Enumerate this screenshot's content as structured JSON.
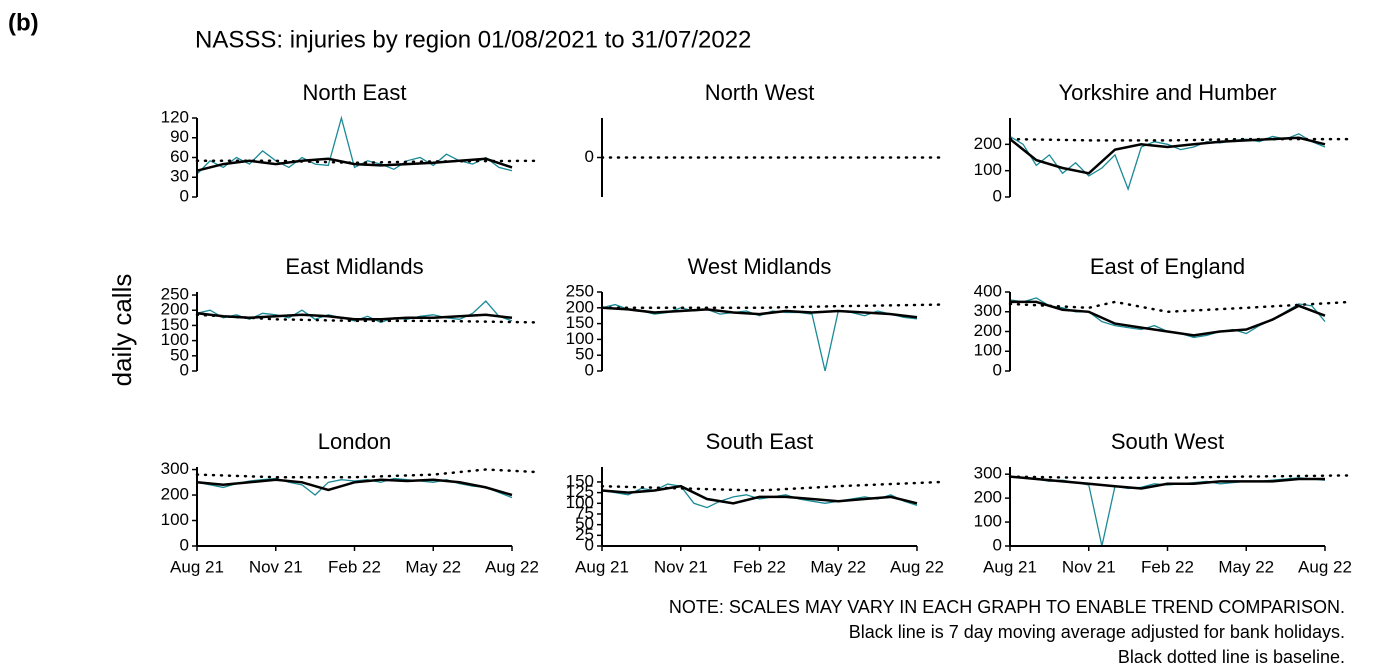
{
  "panel_label": "(b)",
  "title": "NASSS: injuries by region 01/08/2021 to 31/07/2022",
  "ylabel": "daily calls",
  "notes": [
    "NOTE: SCALES MAY VARY IN EACH GRAPH TO ENABLE TREND COMPARISON.",
    "Black line is 7 day moving average adjusted for bank holidays.",
    "Black dotted line is baseline."
  ],
  "chart_data": [
    {
      "type": "line",
      "title": "North East",
      "xlim": [
        0,
        12
      ],
      "ylim": [
        0,
        120
      ],
      "yticks": [
        0,
        30,
        60,
        90,
        120
      ],
      "series": [
        {
          "color": "#1a8a96",
          "style": "solid",
          "x": [
            0,
            0.5,
            1,
            1.5,
            2,
            2.5,
            3,
            3.5,
            4,
            4.5,
            5,
            5.5,
            6,
            6.5,
            7,
            7.5,
            8,
            8.5,
            9,
            9.5,
            10,
            10.5,
            11,
            11.5,
            12
          ],
          "values": [
            35,
            55,
            45,
            60,
            50,
            70,
            55,
            45,
            60,
            50,
            48,
            120,
            45,
            55,
            50,
            42,
            55,
            60,
            48,
            65,
            55,
            50,
            60,
            45,
            40
          ]
        },
        {
          "color": "#000000",
          "style": "solid",
          "x": [
            0,
            1,
            2,
            3,
            4,
            5,
            6,
            7,
            8,
            9,
            10,
            11,
            12
          ],
          "values": [
            40,
            50,
            55,
            50,
            55,
            58,
            50,
            48,
            50,
            52,
            55,
            58,
            45
          ]
        },
        {
          "color": "#000000",
          "style": "dotted",
          "x": [
            0,
            3,
            6,
            9,
            13
          ],
          "values": [
            55,
            55,
            52,
            54,
            55
          ]
        }
      ]
    },
    {
      "type": "line",
      "title": "North West",
      "xlim": [
        0,
        12
      ],
      "ylim": [
        -1,
        1
      ],
      "yticks": [
        0
      ],
      "series": [
        {
          "color": "#000000",
          "style": "dotted",
          "x": [
            0,
            13
          ],
          "values": [
            0,
            0
          ]
        }
      ]
    },
    {
      "type": "line",
      "title": "Yorkshire and Humber",
      "xlim": [
        0,
        12
      ],
      "ylim": [
        0,
        300
      ],
      "yticks": [
        0,
        100,
        200
      ],
      "series": [
        {
          "color": "#1a8a96",
          "style": "solid",
          "x": [
            0,
            0.5,
            1,
            1.5,
            2,
            2.5,
            3,
            3.5,
            4,
            4.5,
            5,
            5.5,
            6,
            6.5,
            7,
            7.5,
            8,
            8.5,
            9,
            9.5,
            10,
            10.5,
            11,
            11.5,
            12
          ],
          "values": [
            230,
            200,
            120,
            160,
            90,
            130,
            80,
            110,
            160,
            30,
            190,
            210,
            200,
            180,
            190,
            210,
            205,
            215,
            220,
            210,
            230,
            220,
            240,
            210,
            190
          ]
        },
        {
          "color": "#000000",
          "style": "solid",
          "x": [
            0,
            1,
            2,
            3,
            4,
            5,
            6,
            7,
            8,
            9,
            10,
            11,
            12
          ],
          "values": [
            220,
            140,
            110,
            90,
            180,
            200,
            190,
            200,
            210,
            215,
            220,
            225,
            200
          ]
        },
        {
          "color": "#000000",
          "style": "dotted",
          "x": [
            0,
            3,
            6,
            9,
            13
          ],
          "values": [
            220,
            215,
            215,
            220,
            220
          ]
        }
      ]
    },
    {
      "type": "line",
      "title": "East Midlands",
      "xlim": [
        0,
        12
      ],
      "ylim": [
        0,
        260
      ],
      "yticks": [
        0,
        50,
        100,
        150,
        200,
        250
      ],
      "series": [
        {
          "color": "#1a8a96",
          "style": "solid",
          "x": [
            0,
            0.5,
            1,
            1.5,
            2,
            2.5,
            3,
            3.5,
            4,
            4.5,
            5,
            5.5,
            6,
            6.5,
            7,
            7.5,
            8,
            8.5,
            9,
            9.5,
            10,
            10.5,
            11,
            11.5,
            12
          ],
          "values": [
            190,
            200,
            175,
            185,
            170,
            190,
            185,
            175,
            200,
            170,
            185,
            175,
            165,
            180,
            160,
            175,
            170,
            180,
            185,
            175,
            170,
            190,
            230,
            180,
            165
          ]
        },
        {
          "color": "#000000",
          "style": "solid",
          "x": [
            0,
            1,
            2,
            3,
            4,
            5,
            6,
            7,
            8,
            9,
            10,
            11,
            12
          ],
          "values": [
            190,
            180,
            175,
            180,
            185,
            180,
            170,
            170,
            175,
            175,
            180,
            185,
            175
          ]
        },
        {
          "color": "#000000",
          "style": "dotted",
          "x": [
            0,
            3,
            6,
            9,
            13
          ],
          "values": [
            185,
            170,
            165,
            165,
            160
          ]
        }
      ]
    },
    {
      "type": "line",
      "title": "West Midlands",
      "xlim": [
        0,
        12
      ],
      "ylim": [
        0,
        250
      ],
      "yticks": [
        0,
        50,
        100,
        150,
        200,
        250
      ],
      "series": [
        {
          "color": "#1a8a96",
          "style": "solid",
          "x": [
            0,
            0.5,
            1,
            1.5,
            2,
            2.5,
            3,
            3.5,
            4,
            4.5,
            5,
            5.5,
            6,
            6.5,
            7,
            7.5,
            8,
            8.5,
            9,
            9.5,
            10,
            10.5,
            11,
            11.5,
            12
          ],
          "values": [
            200,
            210,
            195,
            190,
            180,
            185,
            200,
            190,
            195,
            180,
            185,
            190,
            175,
            190,
            185,
            185,
            180,
            0,
            190,
            185,
            175,
            190,
            180,
            170,
            165
          ]
        },
        {
          "color": "#000000",
          "style": "solid",
          "x": [
            0,
            1,
            2,
            3,
            4,
            5,
            6,
            7,
            8,
            9,
            10,
            11,
            12
          ],
          "values": [
            200,
            195,
            185,
            190,
            195,
            185,
            180,
            190,
            185,
            190,
            185,
            180,
            170
          ]
        },
        {
          "color": "#000000",
          "style": "dotted",
          "x": [
            0,
            3,
            6,
            9,
            13
          ],
          "values": [
            200,
            200,
            200,
            205,
            210
          ]
        }
      ]
    },
    {
      "type": "line",
      "title": "East of England",
      "xlim": [
        0,
        12
      ],
      "ylim": [
        0,
        400
      ],
      "yticks": [
        0,
        100,
        200,
        300,
        400
      ],
      "series": [
        {
          "color": "#1a8a96",
          "style": "solid",
          "x": [
            0,
            0.5,
            1,
            1.5,
            2,
            2.5,
            3,
            3.5,
            4,
            4.5,
            5,
            5.5,
            6,
            6.5,
            7,
            7.5,
            8,
            8.5,
            9,
            9.5,
            10,
            10.5,
            11,
            11.5,
            12
          ],
          "values": [
            360,
            350,
            370,
            330,
            320,
            300,
            300,
            250,
            230,
            220,
            210,
            230,
            200,
            190,
            170,
            180,
            200,
            210,
            190,
            230,
            260,
            300,
            340,
            330,
            250
          ]
        },
        {
          "color": "#000000",
          "style": "solid",
          "x": [
            0,
            1,
            2,
            3,
            4,
            5,
            6,
            7,
            8,
            9,
            10,
            11,
            12
          ],
          "values": [
            350,
            350,
            310,
            300,
            240,
            220,
            200,
            180,
            200,
            210,
            260,
            330,
            280
          ]
        },
        {
          "color": "#000000",
          "style": "dotted",
          "x": [
            0,
            3,
            4,
            6,
            9,
            13
          ],
          "values": [
            340,
            320,
            350,
            300,
            320,
            350
          ]
        }
      ]
    },
    {
      "type": "line",
      "title": "London",
      "xlim": [
        0,
        12
      ],
      "ylim": [
        0,
        310
      ],
      "yticks": [
        0,
        100,
        200,
        300
      ],
      "xticks": [
        {
          "value": 0,
          "label": "Aug 21"
        },
        {
          "value": 3,
          "label": "Nov 21"
        },
        {
          "value": 6,
          "label": "Feb 22"
        },
        {
          "value": 9,
          "label": "May 22"
        },
        {
          "value": 12,
          "label": "Aug 22"
        }
      ],
      "series": [
        {
          "color": "#1a8a96",
          "style": "solid",
          "x": [
            0,
            0.5,
            1,
            1.5,
            2,
            2.5,
            3,
            3.5,
            4,
            4.5,
            5,
            5.5,
            6,
            6.5,
            7,
            7.5,
            8,
            8.5,
            9,
            9.5,
            10,
            10.5,
            11,
            11.5,
            12
          ],
          "values": [
            250,
            240,
            230,
            245,
            255,
            260,
            265,
            250,
            240,
            200,
            250,
            260,
            255,
            260,
            250,
            265,
            260,
            255,
            250,
            260,
            245,
            235,
            230,
            210,
            190
          ]
        },
        {
          "color": "#000000",
          "style": "solid",
          "x": [
            0,
            1,
            2,
            3,
            4,
            5,
            6,
            7,
            8,
            9,
            10,
            11,
            12
          ],
          "values": [
            250,
            240,
            250,
            260,
            250,
            220,
            250,
            260,
            255,
            260,
            250,
            230,
            200
          ]
        },
        {
          "color": "#000000",
          "style": "dotted",
          "x": [
            0,
            3,
            6,
            9,
            11,
            13
          ],
          "values": [
            280,
            270,
            270,
            280,
            300,
            290
          ]
        }
      ]
    },
    {
      "type": "line",
      "title": "South East",
      "xlim": [
        0,
        12
      ],
      "ylim": [
        0,
        185
      ],
      "yticks": [
        0,
        25,
        50,
        75,
        100,
        125,
        150
      ],
      "xticks": [
        {
          "value": 0,
          "label": "Aug 21"
        },
        {
          "value": 3,
          "label": "Nov 21"
        },
        {
          "value": 6,
          "label": "Feb 22"
        },
        {
          "value": 9,
          "label": "May 22"
        },
        {
          "value": 12,
          "label": "Aug 22"
        }
      ],
      "series": [
        {
          "color": "#1a8a96",
          "style": "solid",
          "x": [
            0,
            0.5,
            1,
            1.5,
            2,
            2.5,
            3,
            3.5,
            4,
            4.5,
            5,
            5.5,
            6,
            6.5,
            7,
            7.5,
            8,
            8.5,
            9,
            9.5,
            10,
            10.5,
            11,
            11.5,
            12
          ],
          "values": [
            130,
            125,
            120,
            135,
            130,
            145,
            140,
            100,
            90,
            105,
            115,
            120,
            110,
            115,
            120,
            110,
            105,
            100,
            105,
            110,
            115,
            110,
            120,
            105,
            95
          ]
        },
        {
          "color": "#000000",
          "style": "solid",
          "x": [
            0,
            1,
            2,
            3,
            4,
            5,
            6,
            7,
            8,
            9,
            10,
            11,
            12
          ],
          "values": [
            130,
            125,
            130,
            140,
            110,
            100,
            115,
            115,
            110,
            105,
            110,
            115,
            100
          ]
        },
        {
          "color": "#000000",
          "style": "dotted",
          "x": [
            0,
            3,
            6,
            9,
            13
          ],
          "values": [
            140,
            135,
            130,
            140,
            150
          ]
        }
      ]
    },
    {
      "type": "line",
      "title": "South West",
      "xlim": [
        0,
        12
      ],
      "ylim": [
        0,
        330
      ],
      "yticks": [
        0,
        100,
        200,
        300
      ],
      "xticks": [
        {
          "value": 0,
          "label": "Aug 21"
        },
        {
          "value": 3,
          "label": "Nov 21"
        },
        {
          "value": 6,
          "label": "Feb 22"
        },
        {
          "value": 9,
          "label": "May 22"
        },
        {
          "value": 12,
          "label": "Aug 22"
        }
      ],
      "series": [
        {
          "color": "#1a8a96",
          "style": "solid",
          "x": [
            0,
            0.5,
            1,
            1.5,
            2,
            2.5,
            3,
            3.5,
            4,
            4.5,
            5,
            5.5,
            6,
            6.5,
            7,
            7.5,
            8,
            8.5,
            9,
            9.5,
            10,
            10.5,
            11,
            11.5,
            12
          ],
          "values": [
            290,
            285,
            280,
            270,
            275,
            265,
            255,
            0,
            250,
            240,
            245,
            260,
            255,
            260,
            265,
            270,
            260,
            265,
            270,
            270,
            275,
            280,
            285,
            280,
            275
          ]
        },
        {
          "color": "#000000",
          "style": "solid",
          "x": [
            0,
            1,
            2,
            3,
            4,
            5,
            6,
            7,
            8,
            9,
            10,
            11,
            12
          ],
          "values": [
            290,
            280,
            270,
            260,
            250,
            240,
            260,
            260,
            270,
            270,
            270,
            280,
            280
          ]
        },
        {
          "color": "#000000",
          "style": "dotted",
          "x": [
            0,
            3,
            6,
            9,
            13
          ],
          "values": [
            290,
            285,
            285,
            290,
            295
          ]
        }
      ]
    }
  ]
}
